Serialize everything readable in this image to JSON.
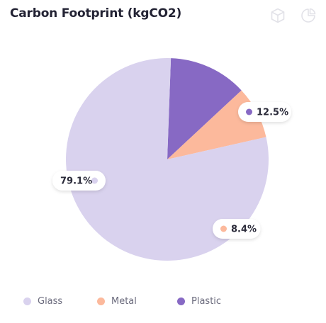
{
  "header": {
    "title": "Carbon Footprint (kgCO2)",
    "icons": [
      "cube-icon",
      "pie-chart-icon"
    ]
  },
  "chart_data": {
    "type": "pie",
    "title": "Carbon Footprint (kgCO2)",
    "legend_position": "bottom",
    "series": [
      {
        "name": "Glass",
        "value": 79.1,
        "label": "79.1%",
        "color": "#d9d2ee"
      },
      {
        "name": "Metal",
        "value": 8.4,
        "label": "8.4%",
        "color": "#fcb99c"
      },
      {
        "name": "Plastic",
        "value": 12.5,
        "label": "12.5%",
        "color": "#8769c4"
      }
    ]
  }
}
